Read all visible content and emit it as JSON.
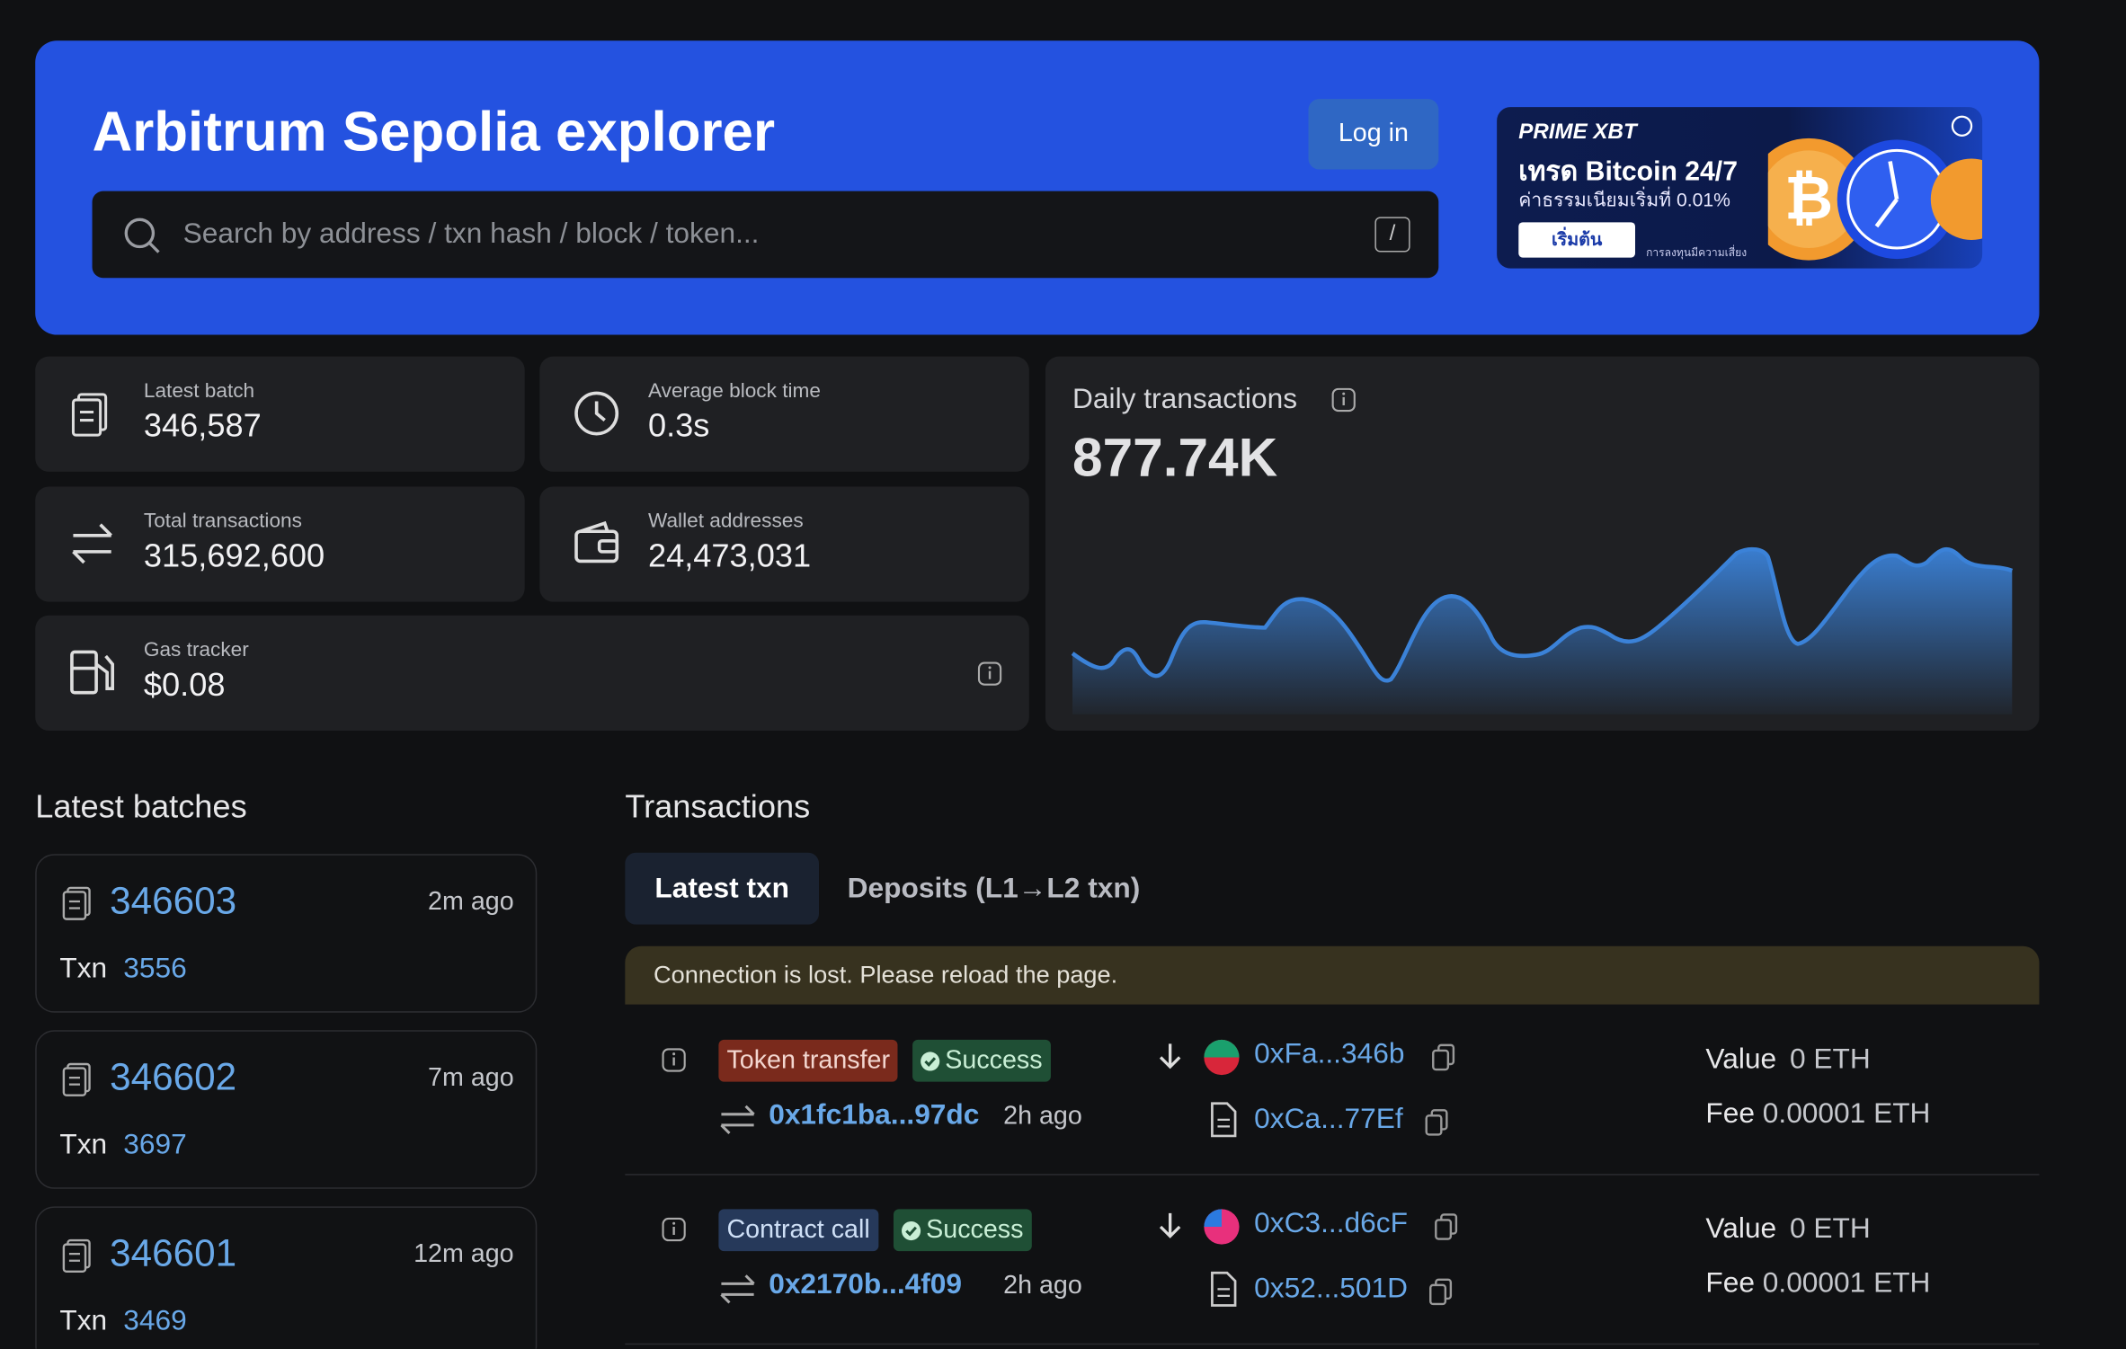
{
  "header": {
    "title": "Arbitrum Sepolia explorer",
    "login": "Log in",
    "search_placeholder": "Search by address / txn hash / block / token...",
    "search_shortcut": "/"
  },
  "ad": {
    "brand": "PRIME XBT",
    "headline": "เทรด Bitcoin 24/7",
    "subline": "ค่าธรรมเนียมเริ่มที่ 0.01%",
    "button": "เริ่มต้น",
    "disclaimer": "การลงทุนมีความเสี่ยง"
  },
  "stats": [
    {
      "label": "Latest batch",
      "value": "346,587"
    },
    {
      "label": "Average block time",
      "value": "0.3s"
    },
    {
      "label": "Total transactions",
      "value": "315,692,600"
    },
    {
      "label": "Wallet addresses",
      "value": "24,473,031"
    },
    {
      "label": "Gas tracker",
      "value": "$0.08"
    }
  ],
  "daily_transactions": {
    "label": "Daily transactions",
    "value": "877.74K"
  },
  "latest_batches": {
    "title": "Latest batches",
    "items": [
      {
        "number": "346603",
        "age": "2m ago",
        "txn_label": "Txn",
        "txn_count": "3556"
      },
      {
        "number": "346602",
        "age": "7m ago",
        "txn_label": "Txn",
        "txn_count": "3697"
      },
      {
        "number": "346601",
        "age": "12m ago",
        "txn_label": "Txn",
        "txn_count": "3469"
      }
    ]
  },
  "transactions": {
    "title": "Transactions",
    "tabs": [
      "Latest txn",
      "Deposits (L1→L2 txn)"
    ],
    "alert": "Connection is lost. Please reload the page.",
    "rows": [
      {
        "type": "Token transfer",
        "status": "Success",
        "hash": "0x1fc1ba...97dc",
        "age": "2h ago",
        "from": "0xFa...346b",
        "to": "0xCa...77Ef",
        "value_label": "Value",
        "value": "0 ETH",
        "fee_label": "Fee",
        "fee": "0.00001 ETH"
      },
      {
        "type": "Contract call",
        "status": "Success",
        "hash": "0x2170b...4f09",
        "age": "2h ago",
        "from": "0xC3...d6cF",
        "to": "0x52...501D",
        "value_label": "Value",
        "value": "0 ETH",
        "fee_label": "Fee",
        "fee": "0.00001 ETH"
      }
    ]
  }
}
